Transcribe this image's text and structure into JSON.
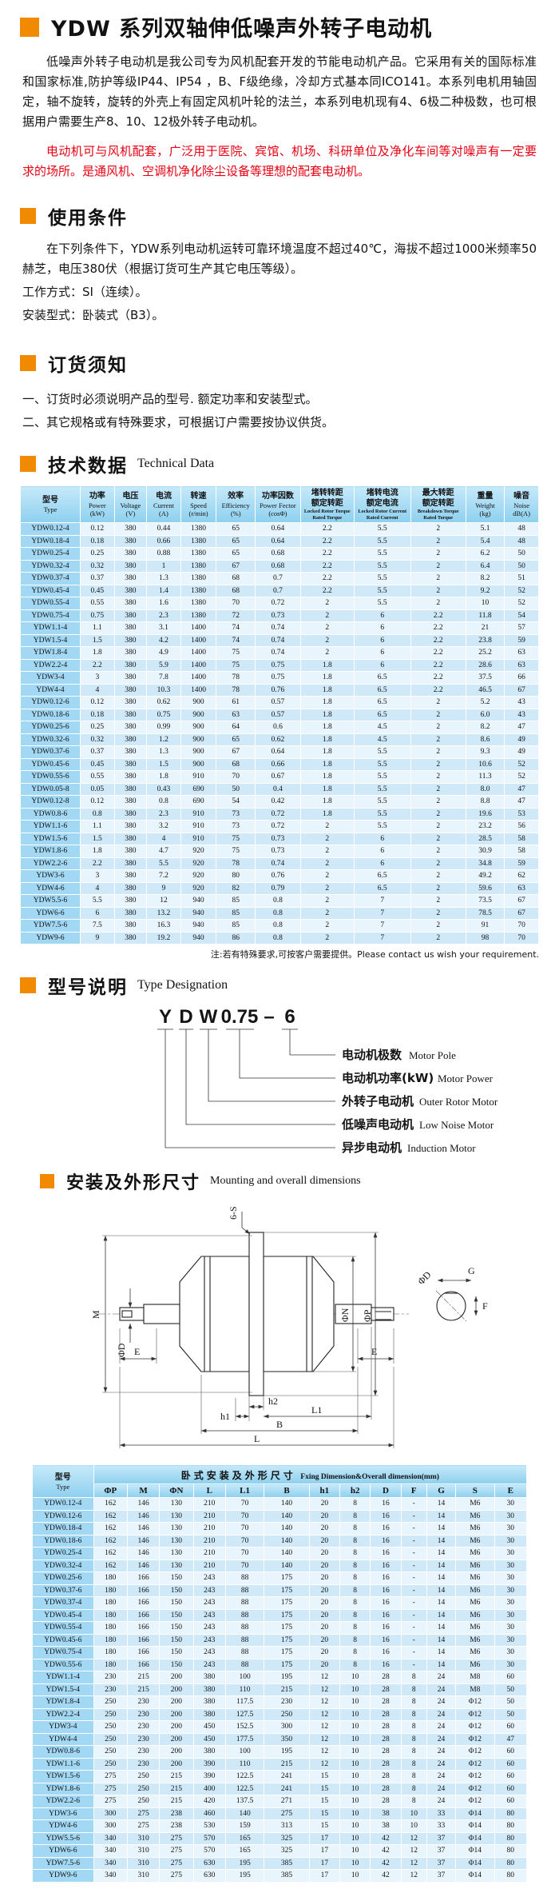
{
  "page": {
    "title": "YDW 系列双轴伸低噪声外转子电动机",
    "intro_black": "低噪声外转子电动机是我公司专为风机配套开发的节能电动机产品。它采用有关的国际标准和国家标准,防护等级IP44、IP54 ，B、F级绝缘，冷却方式基本同ICO141。本系列电机用轴固定，轴不旋转，旋转的外壳上有固定风机叶轮的法兰，本系列电机现有4、6极二种极数，也可根据用户需要生产8、10、12极外转子电动机。",
    "intro_red": "电动机可与风机配套，广泛用于医院、宾馆、机场、科研单位及净化车间等对噪声有一定要求的场所。是通风机、空调机净化除尘设备等理想的配套电动机。"
  },
  "usage": {
    "heading": "使用条件",
    "body": "在下列条件下，YDW系列电动机运转可靠环境温度不超过40℃，海拔不超过1000米频率50赫芝，电压380伏（根据订货可生产其它电压等级）。",
    "line1": "工作方式：SI（连续）。",
    "line2": "安装型式：卧装式（B3）。"
  },
  "ordering": {
    "heading": "订货须知",
    "item1": "一、订货时必须说明产品的型号. 额定功率和安装型式。",
    "item2": "二、其它规格或有特殊要求，可根据订户需要按协议供货。"
  },
  "technical": {
    "heading_cn": "技术数据",
    "heading_en": "Technical Data",
    "note": "注:若有特殊要求,可按客户需要提供。Please contact us wish your requirement."
  },
  "table1": {
    "headers": [
      {
        "cn": "型号",
        "en": "Type"
      },
      {
        "cn": "功率",
        "en": "Power",
        "unit": "(kW)"
      },
      {
        "cn": "电压",
        "en": "Voltage",
        "unit": "(V)"
      },
      {
        "cn": "电流",
        "en": "Current",
        "unit": "(A)"
      },
      {
        "cn": "转速",
        "en": "Speed",
        "unit": "(r/min)"
      },
      {
        "cn": "效率",
        "en": "Efficiency",
        "unit": "(%)"
      },
      {
        "cn": "功率因数",
        "en": "Power Fector",
        "unit": "(cosΦ)"
      },
      {
        "cn": "堵转转距",
        "cn2": "额定转距",
        "en": "Locked Rotor Torque",
        "en2": "Rated Torque"
      },
      {
        "cn": "堵转电流",
        "cn2": "额定电流",
        "en": "Locked Rotor Current",
        "en2": "Rated Current"
      },
      {
        "cn": "最大转距",
        "cn2": "额定转距",
        "en": "Breakdown Torque",
        "en2": "Rated Torque"
      },
      {
        "cn": "重量",
        "en": "Weight",
        "unit": "(kg)"
      },
      {
        "cn": "噪音",
        "en": "Noise",
        "unit": "dB(A)"
      }
    ],
    "rows": [
      [
        "YDW0.12-4",
        "0.12",
        "380",
        "0.44",
        "1380",
        "65",
        "0.64",
        "2.2",
        "5.5",
        "2",
        "5.1",
        "48"
      ],
      [
        "YDW0.18-4",
        "0.18",
        "380",
        "0.66",
        "1380",
        "65",
        "0.64",
        "2.2",
        "5.5",
        "2",
        "5.4",
        "48"
      ],
      [
        "YDW0.25-4",
        "0.25",
        "380",
        "0.88",
        "1380",
        "65",
        "0.68",
        "2.2",
        "5.5",
        "2",
        "6.2",
        "50"
      ],
      [
        "YDW0.32-4",
        "0.32",
        "380",
        "1",
        "1380",
        "67",
        "0.68",
        "2.2",
        "5.5",
        "2",
        "6.4",
        "50"
      ],
      [
        "YDW0.37-4",
        "0.37",
        "380",
        "1.3",
        "1380",
        "68",
        "0.7",
        "2.2",
        "5.5",
        "2",
        "8.2",
        "51"
      ],
      [
        "YDW0.45-4",
        "0.45",
        "380",
        "1.4",
        "1380",
        "68",
        "0.7",
        "2.2",
        "5.5",
        "2",
        "9.2",
        "52"
      ],
      [
        "YDW0.55-4",
        "0.55",
        "380",
        "1.6",
        "1380",
        "70",
        "0.72",
        "2",
        "5.5",
        "2",
        "10",
        "52"
      ],
      [
        "YDW0.75-4",
        "0.75",
        "380",
        "2.3",
        "1380",
        "72",
        "0.73",
        "2",
        "6",
        "2.2",
        "11.8",
        "54"
      ],
      [
        "YDW1.1-4",
        "1.1",
        "380",
        "3.1",
        "1400",
        "74",
        "0.74",
        "2",
        "6",
        "2.2",
        "21",
        "57"
      ],
      [
        "YDW1.5-4",
        "1.5",
        "380",
        "4.2",
        "1400",
        "74",
        "0.74",
        "2",
        "6",
        "2.2",
        "23.8",
        "59"
      ],
      [
        "YDW1.8-4",
        "1.8",
        "380",
        "4.9",
        "1400",
        "75",
        "0.74",
        "2",
        "6",
        "2.2",
        "25.2",
        "63"
      ],
      [
        "YDW2.2-4",
        "2.2",
        "380",
        "5.9",
        "1400",
        "75",
        "0.75",
        "1.8",
        "6",
        "2.2",
        "28.6",
        "63"
      ],
      [
        "YDW3-4",
        "3",
        "380",
        "7.8",
        "1400",
        "78",
        "0.75",
        "1.8",
        "6.5",
        "2.2",
        "37.5",
        "66"
      ],
      [
        "YDW4-4",
        "4",
        "380",
        "10.3",
        "1400",
        "78",
        "0.76",
        "1.8",
        "6.5",
        "2.2",
        "46.5",
        "67"
      ],
      [
        "YDW0.12-6",
        "0.12",
        "380",
        "0.62",
        "900",
        "61",
        "0.57",
        "1.8",
        "6.5",
        "2",
        "5.2",
        "43"
      ],
      [
        "YDW0.18-6",
        "0.18",
        "380",
        "0.75",
        "900",
        "63",
        "0.57",
        "1.8",
        "6.5",
        "2",
        "6.0",
        "43"
      ],
      [
        "YDW0.25-6",
        "0.25",
        "380",
        "0.99",
        "900",
        "64",
        "0.6",
        "1.8",
        "4.5",
        "2",
        "8.2",
        "47"
      ],
      [
        "YDW0.32-6",
        "0.32",
        "380",
        "1.2",
        "900",
        "65",
        "0.62",
        "1.8",
        "4.5",
        "2",
        "8.6",
        "49"
      ],
      [
        "YDW0.37-6",
        "0.37",
        "380",
        "1.3",
        "900",
        "67",
        "0.64",
        "1.8",
        "5.5",
        "2",
        "9.3",
        "49"
      ],
      [
        "YDW0.45-6",
        "0.45",
        "380",
        "1.5",
        "900",
        "68",
        "0.66",
        "1.8",
        "5.5",
        "2",
        "10.6",
        "52"
      ],
      [
        "YDW0.55-6",
        "0.55",
        "380",
        "1.8",
        "910",
        "70",
        "0.67",
        "1.8",
        "5.5",
        "2",
        "11.3",
        "52"
      ],
      [
        "YDW0.05-8",
        "0.05",
        "380",
        "0.43",
        "690",
        "50",
        "0.4",
        "1.8",
        "5.5",
        "2",
        "8.0",
        "47"
      ],
      [
        "YDW0.12-8",
        "0.12",
        "380",
        "0.8",
        "690",
        "54",
        "0.42",
        "1.8",
        "5.5",
        "2",
        "8.8",
        "47"
      ],
      [
        "YDW0.8-6",
        "0.8",
        "380",
        "2.3",
        "910",
        "73",
        "0.72",
        "1.8",
        "5.5",
        "2",
        "19.6",
        "53"
      ],
      [
        "YDW1.1-6",
        "1.1",
        "380",
        "3.2",
        "910",
        "73",
        "0.72",
        "2",
        "5.5",
        "2",
        "23.2",
        "56"
      ],
      [
        "YDW1.5-6",
        "1.5",
        "380",
        "4",
        "910",
        "75",
        "0.73",
        "2",
        "6",
        "2",
        "28.5",
        "58"
      ],
      [
        "YDW1.8-6",
        "1.8",
        "380",
        "4.7",
        "920",
        "75",
        "0.73",
        "2",
        "6",
        "2",
        "30.9",
        "58"
      ],
      [
        "YDW2.2-6",
        "2.2",
        "380",
        "5.5",
        "920",
        "78",
        "0.74",
        "2",
        "6",
        "2",
        "34.8",
        "59"
      ],
      [
        "YDW3-6",
        "3",
        "380",
        "7.2",
        "920",
        "80",
        "0.76",
        "2",
        "6.5",
        "2",
        "49.2",
        "62"
      ],
      [
        "YDW4-6",
        "4",
        "380",
        "9",
        "920",
        "82",
        "0.79",
        "2",
        "6.5",
        "2",
        "59.6",
        "63"
      ],
      [
        "YDW5.5-6",
        "5.5",
        "380",
        "12",
        "940",
        "85",
        "0.8",
        "2",
        "7",
        "2",
        "73.5",
        "67"
      ],
      [
        "YDW6-6",
        "6",
        "380",
        "13.2",
        "940",
        "85",
        "0.8",
        "2",
        "7",
        "2",
        "78.5",
        "67"
      ],
      [
        "YDW7.5-6",
        "7.5",
        "380",
        "16.3",
        "940",
        "85",
        "0.8",
        "2",
        "7",
        "2",
        "91",
        "70"
      ],
      [
        "YDW9-6",
        "9",
        "380",
        "19.2",
        "940",
        "86",
        "0.8",
        "2",
        "7",
        "2",
        "98",
        "70"
      ]
    ]
  },
  "designation": {
    "heading_cn": "型号说明",
    "heading_en": "Type Designation",
    "code": [
      "Y",
      "D",
      "W",
      "0.75",
      "–",
      "6"
    ],
    "labels": [
      {
        "cn": "电动机极数",
        "en": "Motor Pole"
      },
      {
        "cn": "电动机功率(kW)",
        "en": "Motor Power"
      },
      {
        "cn": "外转子电动机",
        "en": "Outer Rotor Motor"
      },
      {
        "cn": "低噪声电动机",
        "en": "Low Noise Motor"
      },
      {
        "cn": "异步电动机",
        "en": "Induction Motor"
      }
    ]
  },
  "mounting": {
    "heading_cn": "安装及外形尺寸",
    "heading_en": "Mounting and overall dimensions",
    "labels": {
      "six_s": "6-S",
      "m": "M",
      "phi_d": "ΦD",
      "e": "E",
      "phi_n": "ΦN",
      "phi_p": "ΦP",
      "g": "G",
      "f": "F",
      "h1": "h1",
      "h2": "h2",
      "l1": "L1",
      "b": "B",
      "l": "L"
    }
  },
  "table2": {
    "type_cn": "型号",
    "type_en": "Type",
    "group_cn": "卧式安装及外形尺寸",
    "group_en": "Fxing Dimension&Overall dimension(mm)",
    "cols": [
      "ΦP",
      "M",
      "ΦN",
      "L",
      "L1",
      "B",
      "h1",
      "h2",
      "D",
      "F",
      "G",
      "S",
      "E"
    ],
    "rows": [
      [
        "YDW0.12-4",
        "162",
        "146",
        "130",
        "210",
        "70",
        "140",
        "20",
        "8",
        "16",
        "-",
        "14",
        "M6",
        "30"
      ],
      [
        "YDW0.12-6",
        "162",
        "146",
        "130",
        "210",
        "70",
        "140",
        "20",
        "8",
        "16",
        "-",
        "14",
        "M6",
        "30"
      ],
      [
        "YDW0.18-4",
        "162",
        "146",
        "130",
        "210",
        "70",
        "140",
        "20",
        "8",
        "16",
        "-",
        "14",
        "M6",
        "30"
      ],
      [
        "YDW0.18-6",
        "162",
        "146",
        "130",
        "210",
        "70",
        "140",
        "20",
        "8",
        "16",
        "-",
        "14",
        "M6",
        "30"
      ],
      [
        "YDW0.25-4",
        "162",
        "146",
        "130",
        "210",
        "70",
        "140",
        "20",
        "8",
        "16",
        "-",
        "14",
        "M6",
        "30"
      ],
      [
        "YDW0.32-4",
        "162",
        "146",
        "130",
        "210",
        "70",
        "140",
        "20",
        "8",
        "16",
        "-",
        "14",
        "M6",
        "30"
      ],
      [
        "YDW0.25-6",
        "180",
        "166",
        "150",
        "243",
        "88",
        "175",
        "20",
        "8",
        "16",
        "-",
        "14",
        "M6",
        "30"
      ],
      [
        "YDW0.37-6",
        "180",
        "166",
        "150",
        "243",
        "88",
        "175",
        "20",
        "8",
        "16",
        "-",
        "14",
        "M6",
        "30"
      ],
      [
        "YDW0.37-4",
        "180",
        "166",
        "150",
        "243",
        "88",
        "175",
        "20",
        "8",
        "16",
        "-",
        "14",
        "M6",
        "30"
      ],
      [
        "YDW0.45-4",
        "180",
        "166",
        "150",
        "243",
        "88",
        "175",
        "20",
        "8",
        "16",
        "-",
        "14",
        "M6",
        "30"
      ],
      [
        "YDW0.55-4",
        "180",
        "166",
        "150",
        "243",
        "88",
        "175",
        "20",
        "8",
        "16",
        "-",
        "14",
        "M6",
        "30"
      ],
      [
        "YDW0.45-6",
        "180",
        "166",
        "150",
        "243",
        "88",
        "175",
        "20",
        "8",
        "16",
        "-",
        "14",
        "M6",
        "30"
      ],
      [
        "YDW0.75-4",
        "180",
        "166",
        "150",
        "243",
        "88",
        "175",
        "20",
        "8",
        "16",
        "-",
        "14",
        "M6",
        "30"
      ],
      [
        "YDW0.55-6",
        "180",
        "166",
        "150",
        "243",
        "88",
        "175",
        "20",
        "8",
        "16",
        "-",
        "14",
        "M6",
        "30"
      ],
      [
        "YDW1.1-4",
        "230",
        "215",
        "200",
        "380",
        "100",
        "195",
        "12",
        "10",
        "28",
        "8",
        "24",
        "M8",
        "60"
      ],
      [
        "YDW1.5-4",
        "230",
        "215",
        "200",
        "380",
        "110",
        "215",
        "12",
        "10",
        "28",
        "8",
        "24",
        "M8",
        "50"
      ],
      [
        "YDW1.8-4",
        "250",
        "230",
        "200",
        "380",
        "117.5",
        "230",
        "12",
        "10",
        "28",
        "8",
        "24",
        "Φ12",
        "50"
      ],
      [
        "YDW2.2-4",
        "250",
        "230",
        "200",
        "380",
        "127.5",
        "250",
        "12",
        "10",
        "28",
        "8",
        "24",
        "Φ12",
        "50"
      ],
      [
        "YDW3-4",
        "250",
        "230",
        "200",
        "450",
        "152.5",
        "300",
        "12",
        "10",
        "28",
        "8",
        "24",
        "Φ12",
        "60"
      ],
      [
        "YDW4-4",
        "250",
        "230",
        "200",
        "450",
        "177.5",
        "350",
        "12",
        "10",
        "28",
        "8",
        "24",
        "Φ12",
        "47"
      ],
      [
        "YDW0.8-6",
        "250",
        "230",
        "200",
        "380",
        "100",
        "195",
        "12",
        "10",
        "28",
        "8",
        "24",
        "Φ12",
        "60"
      ],
      [
        "YDW1.1-6",
        "250",
        "230",
        "200",
        "390",
        "110",
        "215",
        "12",
        "10",
        "28",
        "8",
        "24",
        "Φ12",
        "60"
      ],
      [
        "YDW1.5-6",
        "275",
        "250",
        "215",
        "390",
        "122.5",
        "241",
        "15",
        "10",
        "28",
        "8",
        "24",
        "Φ12",
        "60"
      ],
      [
        "YDW1.8-6",
        "275",
        "250",
        "215",
        "400",
        "122.5",
        "241",
        "15",
        "10",
        "28",
        "8",
        "24",
        "Φ12",
        "60"
      ],
      [
        "YDW2.2-6",
        "275",
        "250",
        "215",
        "420",
        "137.5",
        "271",
        "15",
        "10",
        "28",
        "8",
        "24",
        "Φ12",
        "60"
      ],
      [
        "YDW3-6",
        "300",
        "275",
        "238",
        "460",
        "140",
        "275",
        "15",
        "10",
        "38",
        "10",
        "33",
        "Φ14",
        "80"
      ],
      [
        "YDW4-6",
        "300",
        "275",
        "238",
        "530",
        "159",
        "313",
        "15",
        "10",
        "38",
        "10",
        "33",
        "Φ14",
        "80"
      ],
      [
        "YDW5.5-6",
        "340",
        "310",
        "275",
        "570",
        "165",
        "325",
        "17",
        "10",
        "42",
        "12",
        "37",
        "Φ14",
        "80"
      ],
      [
        "YDW6-6",
        "340",
        "310",
        "275",
        "570",
        "165",
        "325",
        "17",
        "10",
        "42",
        "12",
        "37",
        "Φ14",
        "80"
      ],
      [
        "YDW7.5-6",
        "340",
        "310",
        "275",
        "630",
        "195",
        "385",
        "17",
        "10",
        "42",
        "12",
        "37",
        "Φ14",
        "80"
      ],
      [
        "YDW9-6",
        "340",
        "310",
        "275",
        "630",
        "195",
        "385",
        "17",
        "10",
        "42",
        "12",
        "37",
        "Φ14",
        "80"
      ]
    ]
  }
}
